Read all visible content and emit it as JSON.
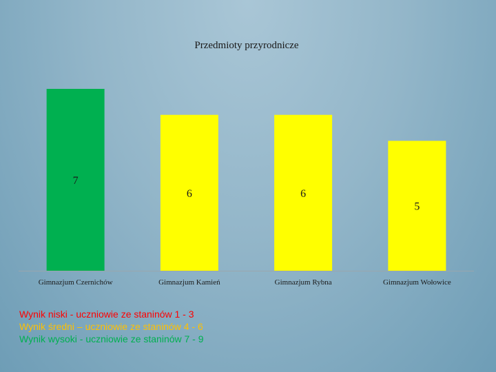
{
  "chart_data": {
    "type": "bar",
    "title": "Przedmioty przyrodnicze",
    "categories": [
      "Gimnazjum Czernichów",
      "Gimnazjum Kamień",
      "Gimnazjum Rybna",
      "Gimnazjum Wołowice"
    ],
    "values": [
      7,
      6,
      6,
      5
    ],
    "colors": [
      "#00b050",
      "#ffff00",
      "#ffff00",
      "#ffff00"
    ],
    "xlabel": "",
    "ylabel": "",
    "ylim": [
      0,
      7
    ],
    "grid": false,
    "legend": "none"
  },
  "legend_notes": [
    {
      "text": "Wynik niski - uczniowie ze staninów 1 - 3",
      "color": "#ff0000"
    },
    {
      "text": "Wynik średni – uczniowie ze staninów 4 - 6",
      "color": "#ffc000"
    },
    {
      "text": "Wynik wysoki - uczniowie ze staninów 7 - 9",
      "color": "#00b050"
    }
  ]
}
